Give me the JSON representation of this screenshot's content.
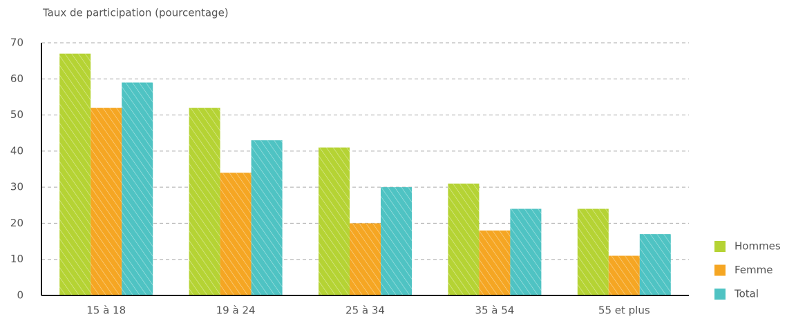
{
  "chart_data": {
    "type": "bar",
    "y_axis_label": "Taux de participation (pourcentage)",
    "categories": [
      "15 à 18",
      "19 à 24",
      "25 à 34",
      "35 à 54",
      "55 et plus"
    ],
    "series": [
      {
        "name": "Hommes",
        "color": "#b5d334",
        "values": [
          67,
          52,
          41,
          31,
          24
        ]
      },
      {
        "name": "Femme",
        "color": "#f5a623",
        "values": [
          52,
          34,
          20,
          18,
          11
        ]
      },
      {
        "name": "Total",
        "color": "#4fc3c3",
        "values": [
          59,
          43,
          30,
          24,
          17
        ]
      }
    ],
    "ylim": [
      0,
      70
    ],
    "yticks": [
      0,
      10,
      20,
      30,
      40,
      50,
      60,
      70
    ],
    "grid": true,
    "legend": "right"
  }
}
